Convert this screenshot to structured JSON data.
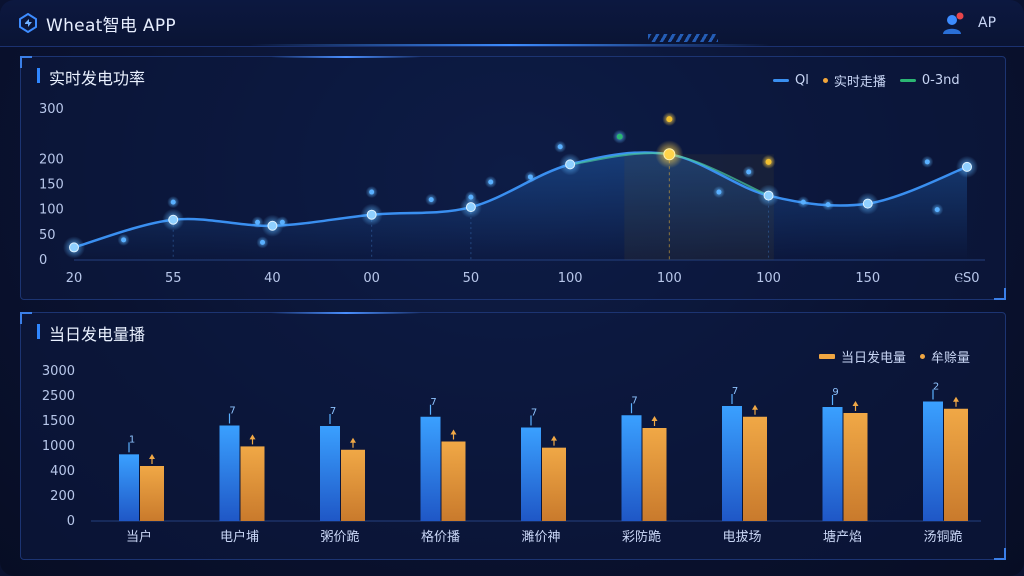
{
  "app": {
    "title": "Wheat智电 APP",
    "user_label": "AP"
  },
  "colors": {
    "line": "#3a8ff0",
    "highlight": "#f2c030",
    "green": "#2bb673",
    "bar_blue": "#2a7fe0",
    "bar_orange": "#e39a3e"
  },
  "chart_data": [
    {
      "type": "line",
      "title": "实时发电功率",
      "legend": [
        "Ql",
        "实时走播",
        "0-3nd"
      ],
      "legend_position": "top-right",
      "x_tick_labels": [
        "20",
        "55",
        "40",
        "00",
        "50",
        "100",
        "100",
        "100",
        "150",
        "ⲈS0"
      ],
      "y_ticks": [
        0,
        50,
        100,
        150,
        200,
        300
      ],
      "ylim": [
        0,
        300
      ],
      "series": [
        {
          "values": [
            25,
            80,
            68,
            90,
            105,
            190,
            210,
            128,
            112,
            185
          ],
          "highlight_index": 6
        }
      ],
      "scatter_points": [
        {
          "x": 0.5,
          "y": 40
        },
        {
          "x": 1.0,
          "y": 115
        },
        {
          "x": 1.85,
          "y": 75
        },
        {
          "x": 1.9,
          "y": 35
        },
        {
          "x": 2.1,
          "y": 75
        },
        {
          "x": 3.0,
          "y": 135
        },
        {
          "x": 3.6,
          "y": 120
        },
        {
          "x": 4.0,
          "y": 125
        },
        {
          "x": 4.2,
          "y": 155
        },
        {
          "x": 4.6,
          "y": 165
        },
        {
          "x": 4.9,
          "y": 225
        },
        {
          "x": 6.5,
          "y": 135
        },
        {
          "x": 6.8,
          "y": 175
        },
        {
          "x": 7.35,
          "y": 115
        },
        {
          "x": 7.6,
          "y": 110
        },
        {
          "x": 8.6,
          "y": 195
        },
        {
          "x": 8.7,
          "y": 100
        }
      ],
      "annotation_points": [
        {
          "x": 5.5,
          "y": 245,
          "color": "green"
        },
        {
          "x": 6.0,
          "y": 280,
          "color": "highlight"
        },
        {
          "x": 7.0,
          "y": 195,
          "color": "highlight"
        }
      ],
      "grid": false
    },
    {
      "type": "bar",
      "title": "当日发电量播",
      "legend": [
        "当日发电量",
        "牟赊量"
      ],
      "legend_position": "top-right",
      "categories": [
        "当户",
        "电户埔",
        "粥价跪",
        "格价播",
        "濉价神",
        "彩防跪",
        "电拔场",
        "塘产焰",
        "汤铜跪"
      ],
      "y_tick_labels": [
        "0",
        "200",
        "400",
        "1000",
        "1500",
        "2500",
        "3000"
      ],
      "series": [
        {
          "name": "当日发电量",
          "values": [
            800,
            1410,
            1400,
            1670,
            1370,
            1730,
            2100,
            2060,
            2280
          ]
        },
        {
          "name": "牟赊量",
          "values": [
            520,
            990,
            910,
            1090,
            960,
            1360,
            1670,
            1820,
            1990
          ]
        }
      ],
      "bar_tops_label_1": [
        "1",
        "7",
        "7",
        "7",
        "7",
        "7",
        "7",
        "9",
        "2"
      ],
      "grid": false
    }
  ]
}
